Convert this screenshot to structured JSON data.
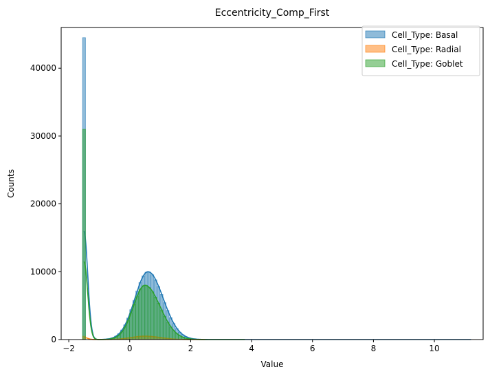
{
  "chart_data": {
    "type": "histogram",
    "title": "Eccentricity_Comp_First",
    "xlabel": "Value",
    "ylabel": "Counts",
    "xlim": [
      -2.25,
      11.6
    ],
    "ylim": [
      0,
      46000
    ],
    "xticks": [
      -2,
      0,
      2,
      4,
      6,
      8,
      10
    ],
    "xtick_labels": [
      "−2",
      "0",
      "2",
      "4",
      "6",
      "8",
      "10"
    ],
    "yticks": [
      0,
      10000,
      20000,
      30000,
      40000
    ],
    "ytick_labels": [
      "0",
      "10000",
      "20000",
      "30000",
      "40000"
    ],
    "grid": false,
    "legend_position": "top-right",
    "kde": true,
    "series": [
      {
        "name": "Cell_Type: Basal",
        "color": "#1f77b4",
        "spike": {
          "x": -1.5,
          "value": 44500
        },
        "bulk": {
          "center": 0.6,
          "peak": 10000,
          "sigma_left": 0.43,
          "sigma_right": 0.5
        },
        "kde_spike_peak": 16000,
        "max_x": 11.2
      },
      {
        "name": "Cell_Type: Radial",
        "color": "#ff7f0e",
        "spike": {
          "x": -1.5,
          "value": 500
        },
        "bulk": {
          "center": 0.5,
          "peak": 500,
          "sigma_left": 0.45,
          "sigma_right": 0.5
        },
        "kde_spike_peak": 300,
        "max_x": 2.5
      },
      {
        "name": "Cell_Type: Goblet",
        "color": "#2ca02c",
        "spike": {
          "x": -1.5,
          "value": 31000
        },
        "bulk": {
          "center": 0.5,
          "peak": 8000,
          "sigma_left": 0.38,
          "sigma_right": 0.5
        },
        "kde_spike_peak": 11500,
        "max_x": 3.8
      }
    ]
  }
}
